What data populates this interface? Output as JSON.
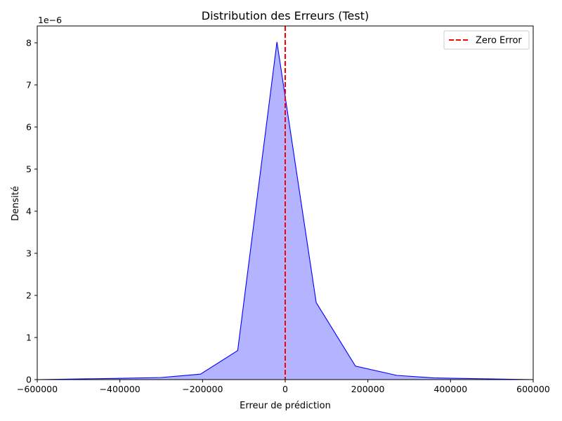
{
  "chart_data": {
    "type": "area",
    "title": "Distribution des Erreurs (Test)",
    "xlabel": "Erreur de prédiction",
    "ylabel": "Densité",
    "y_offset_label": "1e−6",
    "xlim": [
      -600000,
      600000
    ],
    "ylim": [
      0,
      8.4
    ],
    "y_scale": "1e-6",
    "x_ticks": [
      -600000,
      -400000,
      -200000,
      0,
      200000,
      400000,
      600000
    ],
    "y_ticks": [
      0,
      1,
      2,
      3,
      4,
      5,
      6,
      7,
      8
    ],
    "grid": false,
    "legend_position": "top-right",
    "series": [
      {
        "color": "#0000ff",
        "fill": "#b3b3ff",
        "x": [
          -600000,
          -400000,
          -300000,
          -205000,
          -115000,
          -20000,
          75000,
          170000,
          270000,
          360000,
          600000
        ],
        "y": [
          0.0,
          0.03,
          0.05,
          0.13,
          0.69,
          8.02,
          1.83,
          0.32,
          0.1,
          0.04,
          0.0
        ]
      }
    ],
    "reference_lines": [
      {
        "x": 0,
        "label": "Zero Error",
        "color": "#ff0000",
        "style": "dashed"
      }
    ]
  }
}
